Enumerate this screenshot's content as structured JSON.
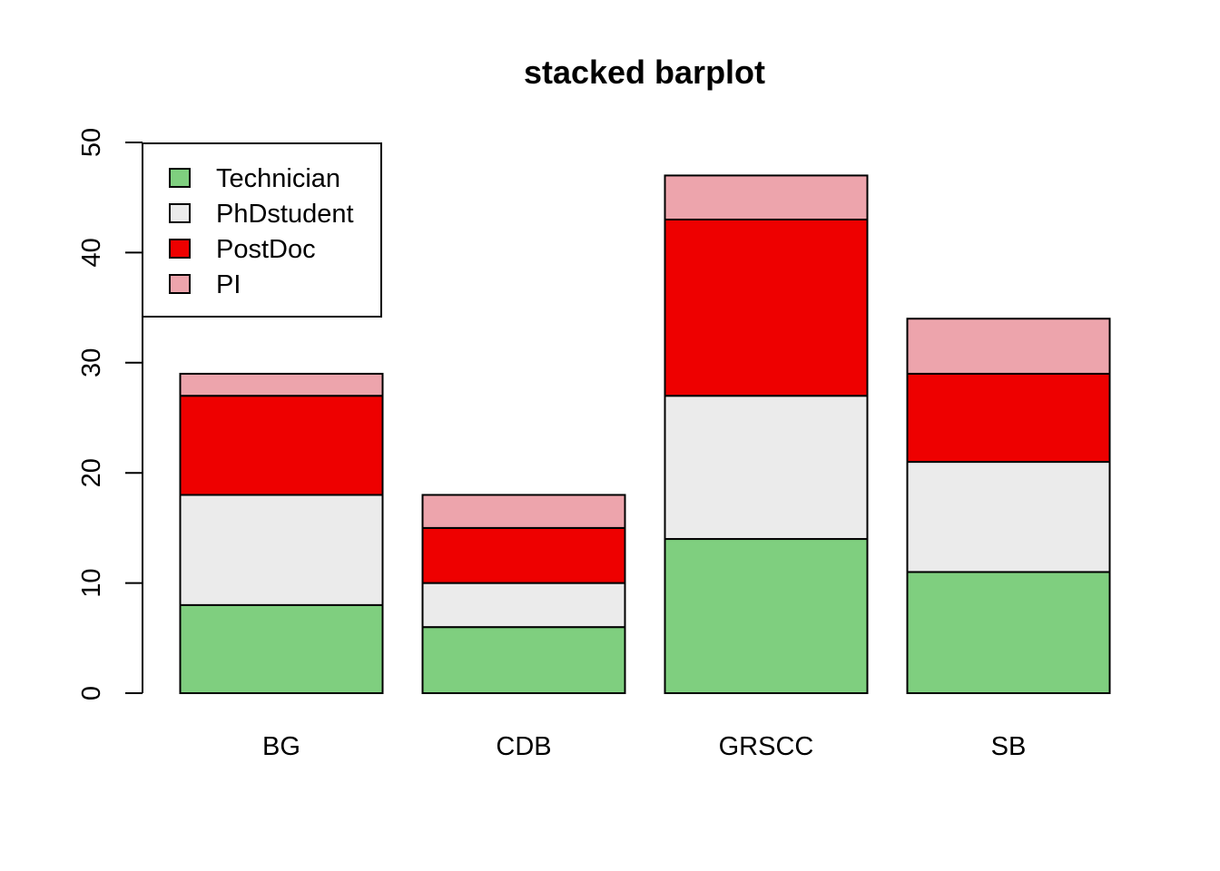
{
  "chart_data": {
    "type": "bar",
    "stacked": true,
    "title": "stacked barplot",
    "xlabel": "",
    "ylabel": "",
    "categories": [
      "BG",
      "CDB",
      "GRSCC",
      "SB"
    ],
    "series": [
      {
        "name": "Technician",
        "color": "#7FCF7F",
        "values": [
          8,
          6,
          14,
          11
        ]
      },
      {
        "name": "PhDstudent",
        "color": "#EBEBEB",
        "values": [
          10,
          4,
          13,
          10
        ]
      },
      {
        "name": "PostDoc",
        "color": "#EE0000",
        "values": [
          9,
          5,
          16,
          8
        ]
      },
      {
        "name": "PI",
        "color": "#EDA4AC",
        "values": [
          2,
          3,
          4,
          5
        ]
      }
    ],
    "ylim": [
      0,
      50
    ],
    "yticks": [
      0,
      10,
      20,
      30,
      40,
      50
    ],
    "legend_position": "top-left",
    "grid": false
  }
}
